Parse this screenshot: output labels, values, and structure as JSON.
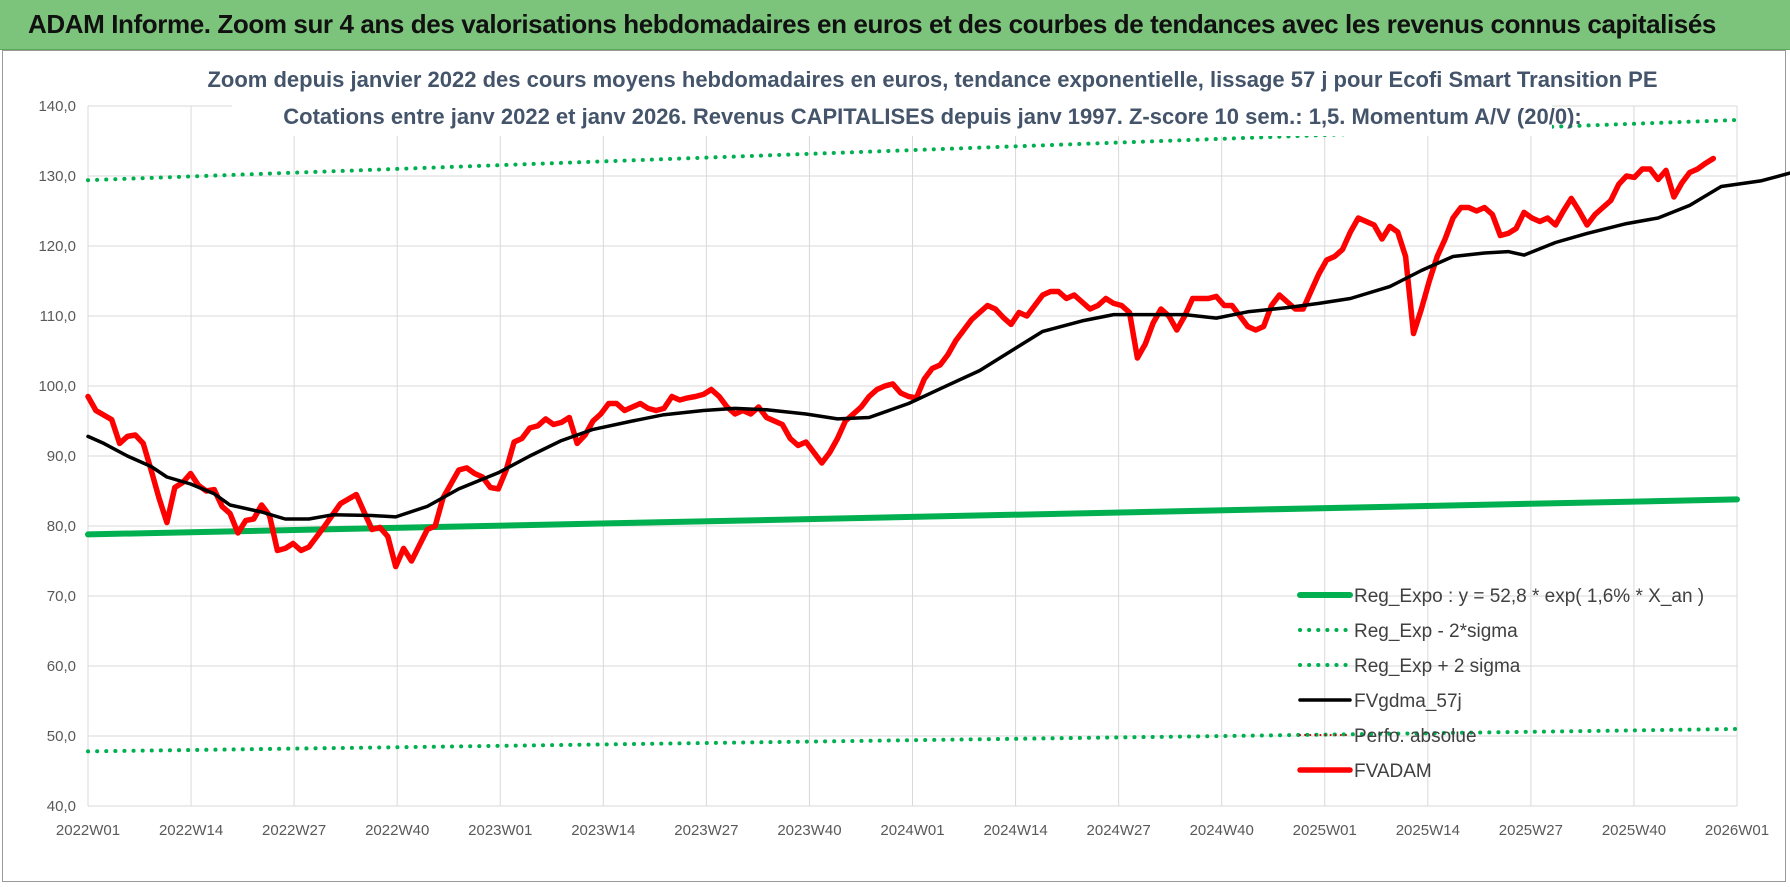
{
  "banner": {
    "title": "ADAM Informe. Zoom sur 4 ans des valorisations hebdomadaires en euros et des courbes de tendances avec les revenus connus capitalisés"
  },
  "colors": {
    "banner_bg": "#7cc47c",
    "green": "#00b050",
    "red": "#ff0000",
    "black": "#000000",
    "darkred_dotted": "#c00000",
    "grid": "#d9d9d9",
    "title": "#44546a"
  },
  "chart_data": {
    "type": "line",
    "title_lines": [
      "Zoom depuis janvier 2022 des cours moyens hebdomadaires en euros, tendance exponentielle, lissage 57 j pour Ecofi Smart Transition PE",
      "Cotations entre janv 2022 et janv 2026. Revenus CAPITALISES depuis janv 1997. Z-score 10 sem.: 1,5. Momentum A/V (20/0):"
    ],
    "ylim": [
      40,
      140
    ],
    "y_ticks": [
      "40,0",
      "50,0",
      "60,0",
      "70,0",
      "80,0",
      "90,0",
      "100,0",
      "110,0",
      "120,0",
      "130,0",
      "140,0"
    ],
    "x_ticks": [
      "2022W01",
      "2022W14",
      "2022W27",
      "2022W40",
      "2023W01",
      "2023W14",
      "2023W27",
      "2023W40",
      "2024W01",
      "2024W14",
      "2024W27",
      "2024W40",
      "2025W01",
      "2025W14",
      "2025W27",
      "2025W40",
      "2026W01"
    ],
    "x_range_weeks": [
      0,
      209
    ],
    "grid": "vertical and horizontal",
    "legend_position": "bottom-right",
    "series": [
      {
        "name": "Reg_Expo : y = 52,8 * exp( 1,6% *  X_an )",
        "style": "solid-thick",
        "color": "#00b050",
        "points": [
          [
            0,
            78.8
          ],
          [
            209,
            83.8
          ]
        ]
      },
      {
        "name": "Reg_Exp - 2*sigma",
        "style": "dotted",
        "color": "#00b050",
        "points": [
          [
            0,
            47.8
          ],
          [
            209,
            51.0
          ]
        ]
      },
      {
        "name": "Reg_Exp + 2 sigma",
        "style": "dotted",
        "color": "#00b050",
        "points": [
          [
            0,
            129.4
          ],
          [
            209,
            138.0
          ]
        ]
      },
      {
        "name": "FVgdma_57j",
        "style": "solid",
        "color": "#000000",
        "points": [
          [
            0,
            92.8
          ],
          [
            2,
            91.8
          ],
          [
            5,
            90.0
          ],
          [
            8,
            88.5
          ],
          [
            10,
            87.0
          ],
          [
            13,
            86.0
          ],
          [
            16,
            84.6
          ],
          [
            18,
            83.0
          ],
          [
            22,
            82.0
          ],
          [
            25,
            81.0
          ],
          [
            28,
            81.0
          ],
          [
            31,
            81.6
          ],
          [
            36,
            81.5
          ],
          [
            39,
            81.3
          ],
          [
            43,
            82.8
          ],
          [
            47,
            85.3
          ],
          [
            52,
            87.6
          ],
          [
            56,
            90.0
          ],
          [
            60,
            92.2
          ],
          [
            64,
            93.8
          ],
          [
            69,
            95.0
          ],
          [
            73,
            95.9
          ],
          [
            78,
            96.5
          ],
          [
            82,
            96.8
          ],
          [
            86,
            96.6
          ],
          [
            91,
            96.0
          ],
          [
            95,
            95.3
          ],
          [
            99,
            95.5
          ],
          [
            104,
            97.5
          ],
          [
            108,
            99.6
          ],
          [
            113,
            102.2
          ],
          [
            117,
            105.0
          ],
          [
            121,
            107.8
          ],
          [
            126,
            109.3
          ],
          [
            130,
            110.2
          ],
          [
            139,
            110.2
          ],
          [
            143,
            109.7
          ],
          [
            147,
            110.6
          ],
          [
            152,
            111.2
          ],
          [
            156,
            111.8
          ],
          [
            160,
            112.5
          ],
          [
            165,
            114.2
          ],
          [
            169,
            116.5
          ],
          [
            173,
            118.5
          ],
          [
            177,
            119.0
          ],
          [
            180,
            119.2
          ],
          [
            182,
            118.7
          ],
          [
            186,
            120.5
          ],
          [
            190,
            121.8
          ],
          [
            195,
            123.2
          ],
          [
            199,
            124.0
          ],
          [
            203,
            125.8
          ],
          [
            207,
            128.5
          ],
          [
            212,
            129.3
          ],
          [
            216,
            130.5
          ],
          [
            219,
            131.0
          ]
        ]
      },
      {
        "name": "Perfo. absolue",
        "style": "dotted-thin",
        "color": "#c00000",
        "points": []
      },
      {
        "name": "FVADAM",
        "style": "solid-thick",
        "color": "#ff0000",
        "points": [
          [
            0,
            98.5
          ],
          [
            1,
            96.5
          ],
          [
            3,
            95.2
          ],
          [
            4,
            91.8
          ],
          [
            5,
            92.8
          ],
          [
            6,
            93.0
          ],
          [
            7,
            91.8
          ],
          [
            8,
            88.0
          ],
          [
            9,
            84.0
          ],
          [
            10,
            80.5
          ],
          [
            11,
            85.5
          ],
          [
            12,
            86.2
          ],
          [
            13,
            87.5
          ],
          [
            14,
            85.8
          ],
          [
            15,
            85.0
          ],
          [
            16,
            85.2
          ],
          [
            17,
            82.8
          ],
          [
            18,
            81.8
          ],
          [
            19,
            79.0
          ],
          [
            20,
            80.8
          ],
          [
            21,
            81.0
          ],
          [
            22,
            83.0
          ],
          [
            23,
            81.5
          ],
          [
            24,
            76.5
          ],
          [
            25,
            76.8
          ],
          [
            26,
            77.5
          ],
          [
            27,
            76.5
          ],
          [
            28,
            77.0
          ],
          [
            30,
            80.0
          ],
          [
            32,
            83.2
          ],
          [
            34,
            84.5
          ],
          [
            35,
            82.0
          ],
          [
            36,
            79.5
          ],
          [
            37,
            79.8
          ],
          [
            38,
            78.5
          ],
          [
            39,
            74.2
          ],
          [
            40,
            76.8
          ],
          [
            41,
            75.0
          ],
          [
            43,
            79.5
          ],
          [
            44,
            80.0
          ],
          [
            45,
            84.0
          ],
          [
            46,
            86.0
          ],
          [
            47,
            88.0
          ],
          [
            48,
            88.3
          ],
          [
            49,
            87.5
          ],
          [
            50,
            87.0
          ],
          [
            51,
            85.5
          ],
          [
            52,
            85.3
          ],
          [
            53,
            88.0
          ],
          [
            54,
            92.0
          ],
          [
            55,
            92.5
          ],
          [
            56,
            94.0
          ],
          [
            57,
            94.3
          ],
          [
            58,
            95.3
          ],
          [
            59,
            94.5
          ],
          [
            60,
            94.8
          ],
          [
            61,
            95.5
          ],
          [
            62,
            91.8
          ],
          [
            63,
            93.0
          ],
          [
            64,
            95.0
          ],
          [
            65,
            96.0
          ],
          [
            66,
            97.5
          ],
          [
            67,
            97.5
          ],
          [
            68,
            96.5
          ],
          [
            69,
            97.0
          ],
          [
            70,
            97.5
          ],
          [
            71,
            96.8
          ],
          [
            72,
            96.5
          ],
          [
            73,
            96.8
          ],
          [
            74,
            98.5
          ],
          [
            75,
            98.0
          ],
          [
            76,
            98.3
          ],
          [
            77,
            98.5
          ],
          [
            78,
            98.8
          ],
          [
            79,
            99.5
          ],
          [
            80,
            98.5
          ],
          [
            81,
            97.0
          ],
          [
            82,
            96.0
          ],
          [
            83,
            96.5
          ],
          [
            84,
            96.0
          ],
          [
            85,
            97.0
          ],
          [
            86,
            95.5
          ],
          [
            87,
            95.0
          ],
          [
            88,
            94.5
          ],
          [
            89,
            92.5
          ],
          [
            90,
            91.5
          ],
          [
            91,
            92.0
          ],
          [
            92,
            90.5
          ],
          [
            93,
            89.0
          ],
          [
            94,
            90.5
          ],
          [
            95,
            92.5
          ],
          [
            96,
            95.0
          ],
          [
            97,
            96.0
          ],
          [
            98,
            97.0
          ],
          [
            99,
            98.5
          ],
          [
            100,
            99.5
          ],
          [
            101,
            100.0
          ],
          [
            102,
            100.3
          ],
          [
            103,
            99.0
          ],
          [
            104,
            98.5
          ],
          [
            105,
            98.3
          ],
          [
            106,
            101.0
          ],
          [
            107,
            102.5
          ],
          [
            108,
            103.0
          ],
          [
            109,
            104.5
          ],
          [
            110,
            106.5
          ],
          [
            111,
            108.0
          ],
          [
            112,
            109.5
          ],
          [
            113,
            110.5
          ],
          [
            114,
            111.5
          ],
          [
            115,
            111.0
          ],
          [
            116,
            109.8
          ],
          [
            117,
            108.8
          ],
          [
            118,
            110.5
          ],
          [
            119,
            110.0
          ],
          [
            120,
            111.5
          ],
          [
            121,
            113.0
          ],
          [
            122,
            113.5
          ],
          [
            123,
            113.5
          ],
          [
            124,
            112.5
          ],
          [
            125,
            113.0
          ],
          [
            126,
            112.0
          ],
          [
            127,
            111.0
          ],
          [
            128,
            111.5
          ],
          [
            129,
            112.5
          ],
          [
            130,
            111.8
          ],
          [
            131,
            111.5
          ],
          [
            132,
            110.5
          ],
          [
            133,
            104.0
          ],
          [
            134,
            106.0
          ],
          [
            135,
            109.0
          ],
          [
            136,
            111.0
          ],
          [
            137,
            110.0
          ],
          [
            138,
            108.0
          ],
          [
            139,
            110.0
          ],
          [
            140,
            112.5
          ],
          [
            141,
            112.5
          ],
          [
            142,
            112.5
          ],
          [
            143,
            112.8
          ],
          [
            144,
            111.5
          ],
          [
            145,
            111.5
          ],
          [
            146,
            110.0
          ],
          [
            147,
            108.5
          ],
          [
            148,
            108.0
          ],
          [
            149,
            108.5
          ],
          [
            150,
            111.5
          ],
          [
            151,
            113.0
          ],
          [
            152,
            112.0
          ],
          [
            153,
            111.0
          ],
          [
            154,
            111.0
          ],
          [
            155,
            113.5
          ],
          [
            156,
            116.0
          ],
          [
            157,
            118.0
          ],
          [
            158,
            118.5
          ],
          [
            159,
            119.5
          ],
          [
            160,
            122.0
          ],
          [
            161,
            124.0
          ],
          [
            162,
            123.5
          ],
          [
            163,
            123.0
          ],
          [
            164,
            121.0
          ],
          [
            165,
            122.8
          ],
          [
            166,
            122.0
          ],
          [
            167,
            118.5
          ],
          [
            168,
            107.5
          ],
          [
            169,
            111.0
          ],
          [
            170,
            115.0
          ],
          [
            171,
            118.5
          ],
          [
            172,
            121.0
          ],
          [
            173,
            124.0
          ],
          [
            174,
            125.5
          ],
          [
            175,
            125.5
          ],
          [
            176,
            125.0
          ],
          [
            177,
            125.5
          ],
          [
            178,
            124.5
          ],
          [
            179,
            121.5
          ],
          [
            180,
            121.8
          ],
          [
            181,
            122.5
          ],
          [
            182,
            124.8
          ],
          [
            183,
            124.0
          ],
          [
            184,
            123.5
          ],
          [
            185,
            124.0
          ],
          [
            186,
            123.0
          ],
          [
            187,
            125.0
          ],
          [
            188,
            126.8
          ],
          [
            189,
            125.0
          ],
          [
            190,
            123.0
          ],
          [
            191,
            124.5
          ],
          [
            192,
            125.5
          ],
          [
            193,
            126.5
          ],
          [
            194,
            128.8
          ],
          [
            195,
            130.0
          ],
          [
            196,
            129.8
          ],
          [
            197,
            131.0
          ],
          [
            198,
            131.0
          ],
          [
            199,
            129.5
          ],
          [
            200,
            130.8
          ],
          [
            201,
            127.0
          ],
          [
            202,
            129.0
          ],
          [
            203,
            130.5
          ],
          [
            204,
            131.0
          ],
          [
            205,
            131.8
          ],
          [
            206,
            132.5
          ]
        ]
      }
    ]
  }
}
